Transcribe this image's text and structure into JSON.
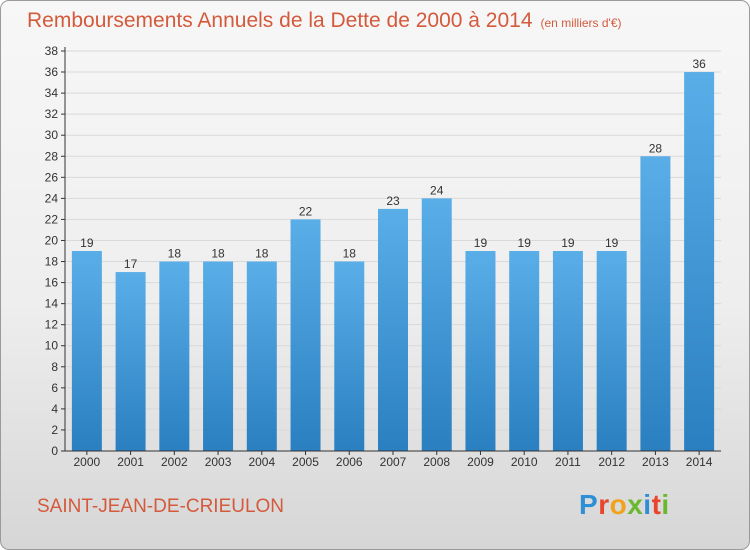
{
  "title": "Remboursements Annuels de la Dette de 2000 à 2014",
  "title_unit": "(en milliers d'€)",
  "commune": "SAINT-JEAN-DE-CRIEULON",
  "logo_text": "Proxiti",
  "colors": {
    "title": "#d45a3c",
    "bar_light": "#5aaee8",
    "bar_dark": "#2a7fc0",
    "axis": "#333333",
    "grid": "#d9d9d9"
  },
  "chart_data": {
    "type": "bar",
    "title": "Remboursements Annuels de la Dette de 2000 à 2014",
    "categories": [
      "2000",
      "2001",
      "2002",
      "2003",
      "2004",
      "2005",
      "2006",
      "2007",
      "2008",
      "2009",
      "2010",
      "2011",
      "2012",
      "2013",
      "2014"
    ],
    "values": [
      19,
      17,
      18,
      18,
      18,
      22,
      18,
      23,
      24,
      19,
      19,
      19,
      19,
      28,
      36
    ],
    "xlabel": "",
    "ylabel": "",
    "ylim": [
      0,
      38
    ],
    "yticks": [
      0,
      2,
      4,
      6,
      8,
      10,
      12,
      14,
      16,
      18,
      20,
      22,
      24,
      26,
      28,
      30,
      32,
      34,
      36,
      38
    ],
    "grid": true
  }
}
